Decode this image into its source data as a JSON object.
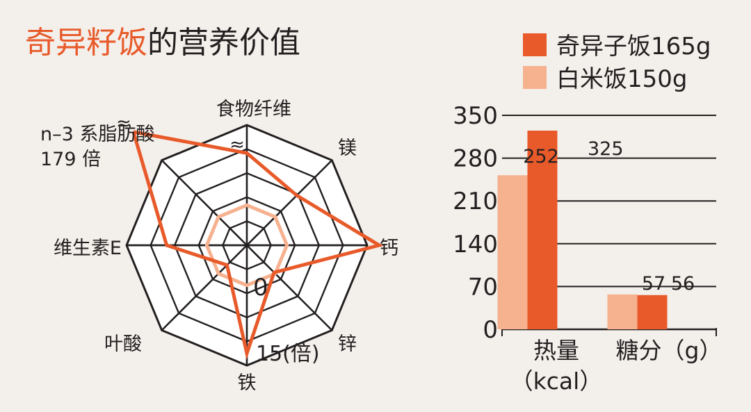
{
  "title": {
    "highlight": "奇异籽饭",
    "rest": "的营养价值"
  },
  "colors": {
    "accent": "#e85a2a",
    "light": "#f6b18f",
    "grid": "#231f20",
    "background": "#f3efea"
  },
  "chart_data": [
    {
      "type": "radar",
      "axes": [
        "食物纤维",
        "镁",
        "钙",
        "锌",
        "铁",
        "叶酸",
        "维生素E",
        "n–3 系脂肪酸\n179 倍"
      ],
      "rlim": [
        0,
        15
      ],
      "r_min_label": "0",
      "r_max_label": "15(倍)",
      "series": [
        {
          "color": "#f6b18f",
          "values": [
            5,
            5,
            5,
            5,
            5,
            5,
            5,
            5
          ]
        },
        {
          "color": "#e85a2a",
          "values": [
            11.5,
            8.8,
            16.5,
            4.8,
            13.5,
            3.5,
            10,
            20
          ],
          "off_scale": [
            0,
            7
          ],
          "off_scale_mark": "≈"
        }
      ]
    },
    {
      "type": "bar",
      "categories": [
        "热量\n（kcal）",
        "糖分（g）"
      ],
      "ylim": [
        0,
        350
      ],
      "yticks": [
        0,
        70,
        140,
        210,
        280,
        350
      ],
      "grid": true,
      "legend_position": "top-right",
      "series": [
        {
          "name": "奇异子饭165g",
          "color": "#e85a2a",
          "values": [
            325,
            56
          ]
        },
        {
          "name": "白米饭150g",
          "color": "#f6b18f",
          "values": [
            252,
            57
          ]
        }
      ]
    }
  ]
}
